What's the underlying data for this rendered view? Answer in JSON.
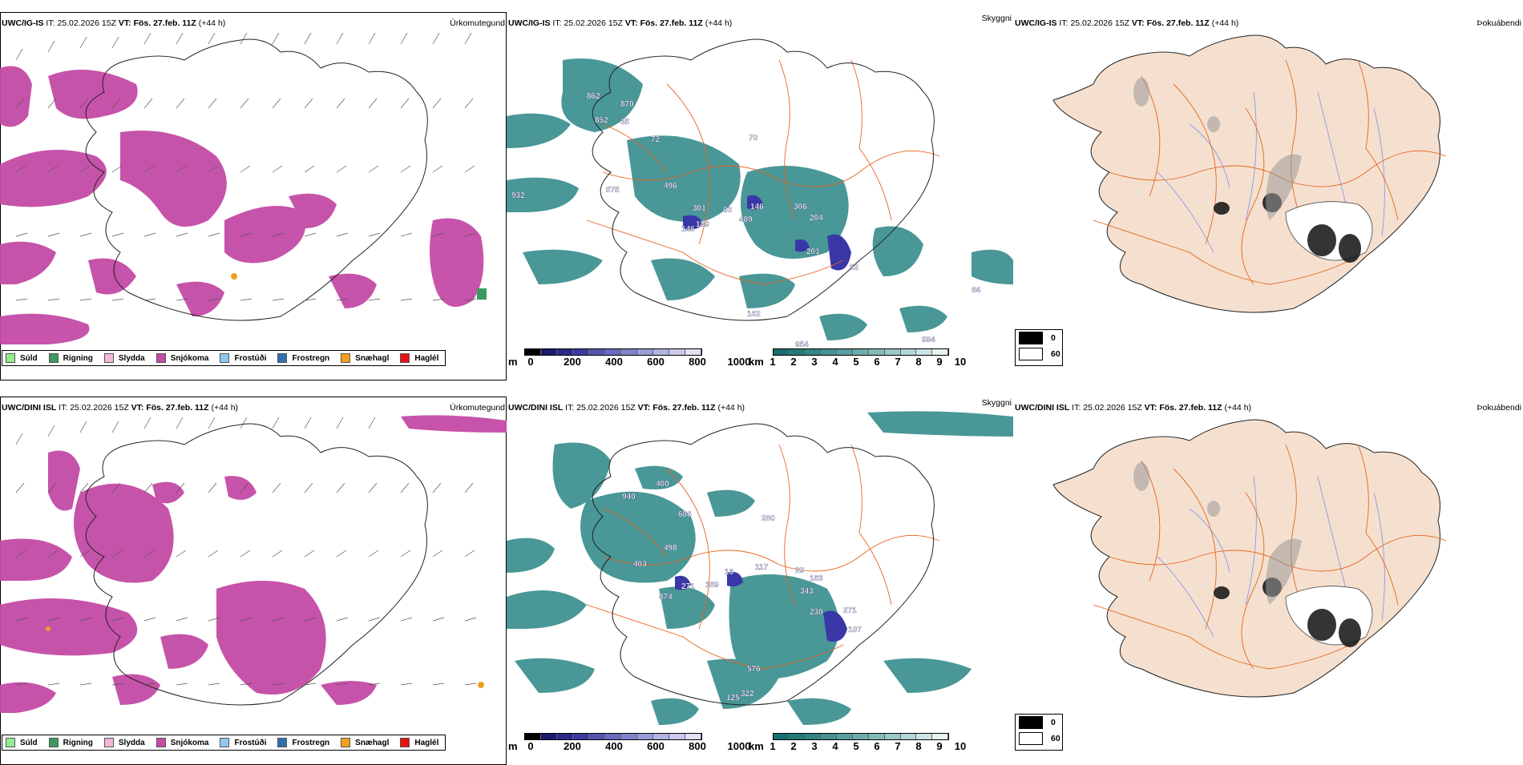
{
  "rows": [
    {
      "model": "UWC/IG-IS",
      "precip": {
        "model": "UWC/IG-IS",
        "it_label": "IT:",
        "it": "25.02.2026 15Z",
        "vt_label": "VT:",
        "vt": "Fös. 27.feb. 11Z",
        "lead": "(+44 h)",
        "right_label": "Úrkomutegund"
      },
      "cloud": {
        "model": "UWC/IG-IS",
        "it_label": "IT:",
        "it": "25.02.2026 15Z",
        "vt_label": "VT:",
        "vt": "Fös. 27.feb. 11Z",
        "lead": "(+44 h)",
        "right_label": "Skyggni",
        "labels": [
          "862",
          "870",
          "852",
          "35",
          "72",
          "70",
          "496",
          "575",
          "301",
          "03",
          "146",
          "306",
          "204",
          "189",
          "146",
          "489",
          "201",
          "52",
          "162",
          "954",
          "994",
          "84",
          "932"
        ]
      },
      "fog": {
        "model": "UWC/IG-IS",
        "it_label": "IT:",
        "it": "25.02.2026 15Z",
        "vt_label": "VT:",
        "vt": "Fös. 27.feb. 11Z",
        "lead": "(+44 h)",
        "right_label": "Þokuábendi"
      }
    },
    {
      "model": "UWC/DINI ISL",
      "precip": {
        "model": "UWC/DINI ISL",
        "it_label": "IT:",
        "it": "25.02.2026 15Z",
        "vt_label": "VT:",
        "vt": "Fös. 27.feb. 11Z",
        "lead": "(+44 h)",
        "right_label": "Úrkomutegund"
      },
      "cloud": {
        "model": "UWC/DINI ISL",
        "it_label": "IT:",
        "it": "25.02.2026 15Z",
        "vt_label": "VT:",
        "vt": "Fös. 27.feb. 11Z",
        "lead": "(+44 h)",
        "right_label": "Skyggni",
        "labels": [
          "400",
          "940",
          "686",
          "280",
          "498",
          "403",
          "16",
          "117",
          "29",
          "163",
          "874",
          "271",
          "189",
          "343",
          "230",
          "271",
          "107",
          "576",
          "125",
          "322"
        ]
      },
      "fog": {
        "model": "UWC/DINI ISL",
        "it_label": "IT:",
        "it": "25.02.2026 15Z",
        "vt_label": "VT:",
        "vt": "Fös. 27.feb. 11Z",
        "lead": "(+44 h)",
        "right_label": "Þokuábendi"
      }
    }
  ],
  "precip_legend": [
    {
      "label": "Súld",
      "color": "#90ee90"
    },
    {
      "label": "Rigning",
      "color": "#3c9a5f"
    },
    {
      "label": "Slydda",
      "color": "#f4b6d6"
    },
    {
      "label": "Snjókoma",
      "color": "#c44aa6"
    },
    {
      "label": "Frostúði",
      "color": "#8ec7f0"
    },
    {
      "label": "Frostregn",
      "color": "#2f6fb2"
    },
    {
      "label": "Snæhagl",
      "color": "#f0a020"
    },
    {
      "label": "Haglél",
      "color": "#e81010"
    }
  ],
  "cloud_base_scale": {
    "unit": "m",
    "ticks": [
      "0",
      "200",
      "400",
      "600",
      "800",
      "1000"
    ],
    "colors": [
      "#000000",
      "#1a1a6e",
      "#2a2a8a",
      "#3b3b9e",
      "#5555b0",
      "#6b6bbf",
      "#8383cc",
      "#9b9bd8",
      "#b3b3e3",
      "#cacaee",
      "#e0e0f6"
    ]
  },
  "visibility_scale": {
    "unit": "km",
    "ticks": [
      "1",
      "2",
      "3",
      "4",
      "5",
      "6",
      "7",
      "8",
      "9",
      "10"
    ],
    "colors": [
      "#176f6f",
      "#237a7a",
      "#338686",
      "#459292",
      "#5a9f9f",
      "#6eacac",
      "#85baba",
      "#9bc8c8",
      "#b4d6d6",
      "#cde4e4",
      "#e6f2f2"
    ]
  },
  "fog_legend": [
    {
      "label": "0",
      "color": "#000000"
    },
    {
      "label": "60",
      "color": "#ffffff"
    }
  ],
  "colors": {
    "snow": "#c44aa6",
    "cloud": "#2a8585",
    "cloud_base": "#3a37a8",
    "land": "#f5e0cf",
    "roads": "#e8641e",
    "rivers": "#7b8ff0"
  }
}
